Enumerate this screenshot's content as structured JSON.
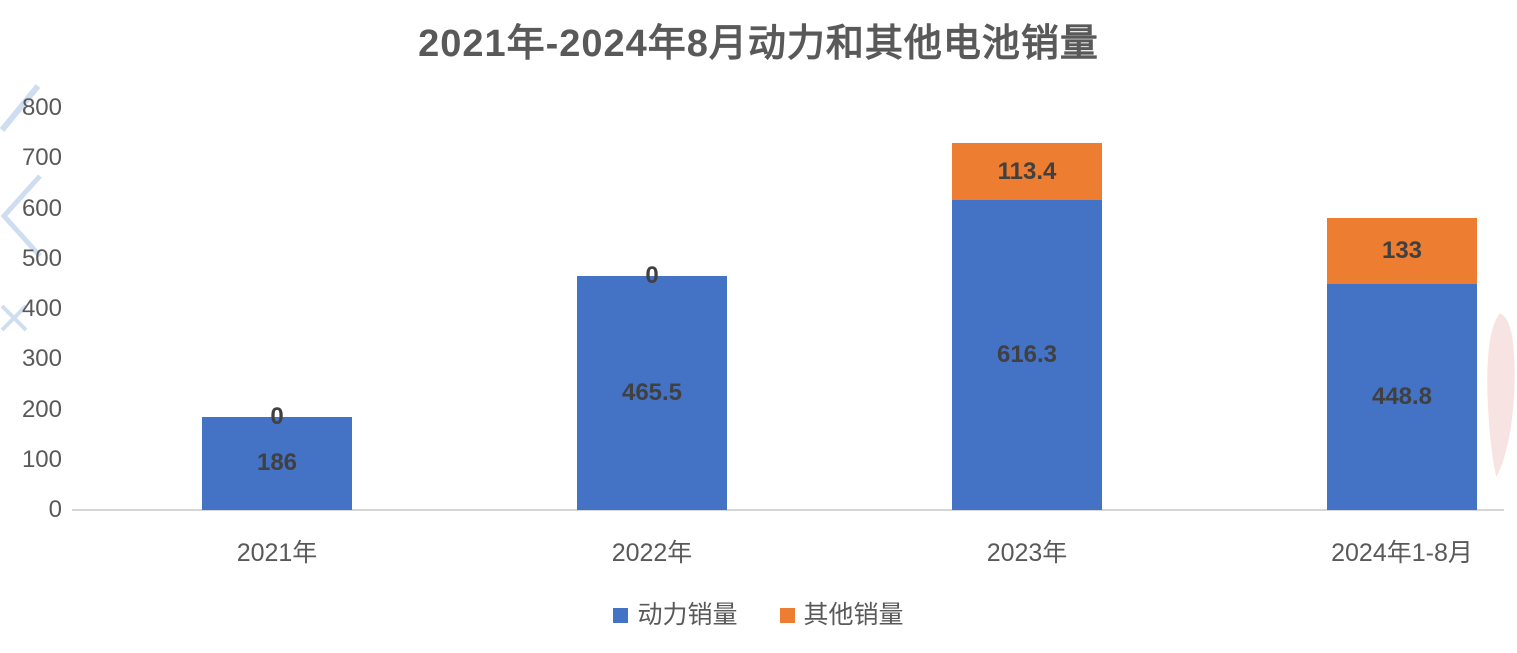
{
  "colors": {
    "power": "#4472C4",
    "other": "#ED7D31",
    "axis_line": "#D6D6D6",
    "data_label": "#404040",
    "tick_label": "#595959",
    "title_text": "#595959",
    "watermark_blue": "#A9C3E4",
    "watermark_pink": "#F2CFCB"
  },
  "chart_data": {
    "type": "bar",
    "stacked": true,
    "title": "2021年-2024年8月动力和其他电池销量",
    "categories": [
      "2021年",
      "2022年",
      "2023年",
      "2024年1-8月"
    ],
    "series": [
      {
        "name": "动力销量",
        "color_key": "power",
        "values": [
          186,
          465.5,
          616.3,
          448.8
        ]
      },
      {
        "name": "其他销量",
        "color_key": "other",
        "values": [
          0,
          0,
          113.4,
          133
        ]
      }
    ],
    "ylim": [
      0,
      800
    ],
    "yticks": [
      0,
      100,
      200,
      300,
      400,
      500,
      600,
      700,
      800
    ],
    "grid": false,
    "legend_position": "bottom",
    "data_labels": true
  }
}
